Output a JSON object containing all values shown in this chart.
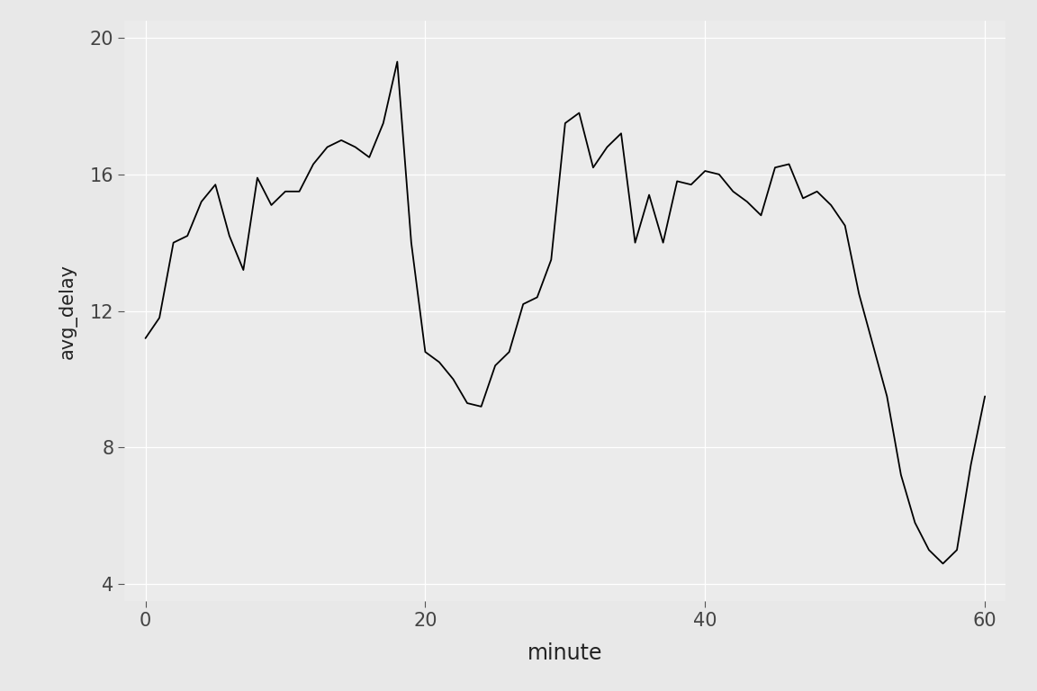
{
  "x": [
    0,
    1,
    2,
    3,
    4,
    5,
    6,
    7,
    8,
    9,
    10,
    11,
    12,
    13,
    14,
    15,
    16,
    17,
    18,
    19,
    20,
    21,
    22,
    23,
    24,
    25,
    26,
    27,
    28,
    29,
    30,
    31,
    32,
    33,
    34,
    35,
    36,
    37,
    38,
    39,
    40,
    41,
    42,
    43,
    44,
    45,
    46,
    47,
    48,
    49,
    50,
    51,
    52,
    53,
    54,
    55,
    56,
    57,
    58,
    59,
    60
  ],
  "y": [
    11.2,
    11.8,
    14.0,
    14.2,
    15.2,
    15.7,
    14.2,
    13.2,
    15.9,
    15.1,
    15.5,
    15.5,
    16.3,
    16.8,
    17.0,
    16.8,
    16.5,
    17.5,
    19.3,
    14.0,
    10.8,
    10.5,
    10.0,
    9.3,
    9.2,
    10.4,
    10.8,
    12.2,
    12.4,
    13.5,
    17.5,
    17.8,
    16.2,
    16.8,
    17.2,
    14.0,
    15.4,
    14.0,
    15.8,
    15.7,
    16.1,
    16.0,
    15.5,
    15.2,
    14.8,
    16.2,
    16.3,
    15.3,
    15.5,
    15.1,
    14.5,
    12.5,
    11.0,
    9.5,
    7.2,
    5.8,
    5.0,
    4.6,
    5.0,
    7.5,
    9.5
  ],
  "line_color": "#000000",
  "line_width": 1.3,
  "fig_facecolor": "#E8E8E8",
  "panel_facecolor": "#EBEBEB",
  "grid_color": "#FFFFFF",
  "xlabel": "minute",
  "ylabel": "avg_delay",
  "xlim": [
    -1.5,
    61.5
  ],
  "ylim": [
    3.5,
    20.5
  ],
  "xticks": [
    0,
    20,
    40,
    60
  ],
  "yticks": [
    4,
    8,
    12,
    16,
    20
  ],
  "xlabel_fontsize": 17,
  "ylabel_fontsize": 15,
  "tick_fontsize": 15
}
